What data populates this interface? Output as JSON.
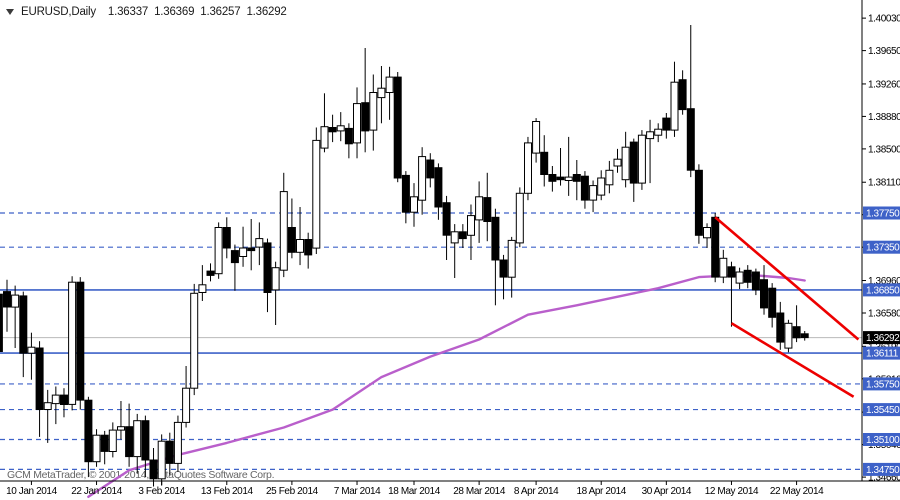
{
  "title": {
    "symbol": "EURUSD,Daily",
    "open": "1.36337",
    "high": "1.36369",
    "low": "1.36257",
    "close": "1.36292"
  },
  "watermark": "GCM MetaTrader, © 2001-2014, MetaQuotes Software Corp.",
  "colors": {
    "blue": "#3E62C8",
    "red": "#ED0000",
    "purple": "#B95FCB",
    "gray_price_line": "#B9B9B9",
    "axis": "#000000",
    "bearish_fill": "#000000",
    "bullish_fill": "#FFFFFF",
    "badge_text": "#FFFFFF",
    "current_badge_bg": "#000000",
    "watermark_color": "#666666"
  },
  "y_axis": {
    "ticks": [
      "1.40030",
      "1.39650",
      "1.39260",
      "1.38880",
      "1.38500",
      "1.38110",
      "1.37730",
      "1.37350",
      "1.36960",
      "1.36580",
      "1.36190",
      "1.35810",
      "1.35420",
      "1.35040",
      "1.34660"
    ]
  },
  "x_axis": {
    "labels": [
      {
        "label": "10 Jan 2014",
        "bar": 4
      },
      {
        "label": "22 Jan 2014",
        "bar": 12
      },
      {
        "label": "3 Feb 2014",
        "bar": 20
      },
      {
        "label": "13 Feb 2014",
        "bar": 28
      },
      {
        "label": "25 Feb 2014",
        "bar": 36
      },
      {
        "label": "7 Mar 2014",
        "bar": 44
      },
      {
        "label": "18 Mar 2014",
        "bar": 51
      },
      {
        "label": "28 Mar 2014",
        "bar": 59
      },
      {
        "label": "8 Apr 2014",
        "bar": 66
      },
      {
        "label": "18 Apr 2014",
        "bar": 74
      },
      {
        "label": "30 Apr 2014",
        "bar": 82
      },
      {
        "label": "12 May 2014",
        "bar": 90
      },
      {
        "label": "22 May 2014",
        "bar": 98
      }
    ]
  },
  "price_badges": [
    {
      "label": "1.37750",
      "price": 1.3775,
      "type": "blue"
    },
    {
      "label": "1.37350",
      "price": 1.3735,
      "type": "blue"
    },
    {
      "label": "1.36850",
      "price": 1.3685,
      "type": "blue"
    },
    {
      "label": "1.36292",
      "price": 1.36292,
      "type": "black"
    },
    {
      "label": "1.36111",
      "price": 1.36111,
      "type": "blue"
    },
    {
      "label": "1.35750",
      "price": 1.3575,
      "type": "blue"
    },
    {
      "label": "1.35450",
      "price": 1.3545,
      "type": "blue"
    },
    {
      "label": "1.35100",
      "price": 1.351,
      "type": "blue"
    },
    {
      "label": "1.34750",
      "price": 1.3475,
      "type": "blue"
    }
  ],
  "chart_data": {
    "type": "candlestick",
    "symbol": "EURUSD",
    "timeframe": "Daily",
    "last_quote": {
      "open": 1.36337,
      "high": 1.36369,
      "low": 1.36257,
      "close": 1.36292
    },
    "y_range_visible": [
      1.346,
      1.4024
    ],
    "columns": [
      "date",
      "open",
      "high",
      "low",
      "close"
    ],
    "candles": [
      [
        "2014-01-06",
        1.368,
        1.3697,
        1.36,
        1.3613
      ],
      [
        "2014-01-07",
        1.3683,
        1.3697,
        1.3636,
        1.3665
      ],
      [
        "2014-01-08",
        1.3665,
        1.369,
        1.3617,
        1.3679
      ],
      [
        "2014-01-09",
        1.3678,
        1.3683,
        1.3583,
        1.3611
      ],
      [
        "2014-01-10",
        1.3611,
        1.3635,
        1.358,
        1.3618
      ],
      [
        "2014-01-13",
        1.3617,
        1.3625,
        1.3513,
        1.3545
      ],
      [
        "2014-01-14",
        1.3545,
        1.3568,
        1.3506,
        1.3553
      ],
      [
        "2014-01-15",
        1.3552,
        1.3572,
        1.3528,
        1.3562
      ],
      [
        "2014-01-16",
        1.3562,
        1.357,
        1.3536,
        1.3551
      ],
      [
        "2014-01-17",
        1.3551,
        1.3701,
        1.3544,
        1.3694
      ],
      [
        "2014-01-20",
        1.3694,
        1.37,
        1.3545,
        1.3556
      ],
      [
        "2014-01-21",
        1.3556,
        1.356,
        1.3466,
        1.3484
      ],
      [
        "2014-01-22",
        1.3484,
        1.3522,
        1.3478,
        1.3515
      ],
      [
        "2014-01-23",
        1.3515,
        1.352,
        1.3481,
        1.3496
      ],
      [
        "2014-01-24",
        1.3496,
        1.353,
        1.3489,
        1.3521
      ],
      [
        "2014-01-27",
        1.3521,
        1.3555,
        1.351,
        1.3525
      ],
      [
        "2014-01-28",
        1.3525,
        1.3552,
        1.3478,
        1.349
      ],
      [
        "2014-01-29",
        1.349,
        1.354,
        1.347,
        1.3532
      ],
      [
        "2014-01-30",
        1.3532,
        1.3538,
        1.3466,
        1.3486
      ],
      [
        "2014-01-31",
        1.3486,
        1.35,
        1.3455,
        1.3464
      ],
      [
        "2014-02-03",
        1.3464,
        1.3516,
        1.3456,
        1.3508
      ],
      [
        "2014-02-04",
        1.3508,
        1.3518,
        1.3468,
        1.3482
      ],
      [
        "2014-02-05",
        1.3482,
        1.3538,
        1.3472,
        1.353
      ],
      [
        "2014-02-06",
        1.353,
        1.3596,
        1.3524,
        1.357
      ],
      [
        "2014-02-07",
        1.357,
        1.3692,
        1.3562,
        1.3681
      ],
      [
        "2014-02-10",
        1.3682,
        1.3714,
        1.3672,
        1.3691
      ],
      [
        "2014-02-11",
        1.3707,
        1.3716,
        1.3695,
        1.3702
      ],
      [
        "2014-02-12",
        1.3704,
        1.3764,
        1.3698,
        1.3758
      ],
      [
        "2014-02-13",
        1.3758,
        1.377,
        1.3722,
        1.3734
      ],
      [
        "2014-02-14",
        1.3731,
        1.3738,
        1.3684,
        1.3717
      ],
      [
        "2014-02-17",
        1.3724,
        1.3759,
        1.3712,
        1.3734
      ],
      [
        "2014-02-18",
        1.3734,
        1.3768,
        1.3708,
        1.3731
      ],
      [
        "2014-02-19",
        1.3735,
        1.3764,
        1.3714,
        1.3745
      ],
      [
        "2014-02-20",
        1.374,
        1.3745,
        1.3659,
        1.3682
      ],
      [
        "2014-02-21",
        1.3685,
        1.3718,
        1.3644,
        1.3711
      ],
      [
        "2014-02-24",
        1.3708,
        1.3822,
        1.37,
        1.38
      ],
      [
        "2014-02-25",
        1.3758,
        1.3792,
        1.3722,
        1.3729
      ],
      [
        "2014-02-26",
        1.3729,
        1.3782,
        1.3714,
        1.3744
      ],
      [
        "2014-02-27",
        1.3744,
        1.3752,
        1.371,
        1.3726
      ],
      [
        "2014-02-28",
        1.3734,
        1.3875,
        1.3727,
        1.386
      ],
      [
        "2014-03-03",
        1.3851,
        1.3915,
        1.3846,
        1.3876
      ],
      [
        "2014-03-04",
        1.3875,
        1.389,
        1.3858,
        1.387
      ],
      [
        "2014-03-05",
        1.3871,
        1.3893,
        1.3859,
        1.3877
      ],
      [
        "2014-03-06",
        1.3874,
        1.388,
        1.3839,
        1.3856
      ],
      [
        "2014-03-07",
        1.3857,
        1.3922,
        1.3839,
        1.3903
      ],
      [
        "2014-03-10",
        1.3904,
        1.3968,
        1.3846,
        1.3871
      ],
      [
        "2014-03-11",
        1.3872,
        1.3937,
        1.3848,
        1.3916
      ],
      [
        "2014-03-12",
        1.391,
        1.3947,
        1.388,
        1.3921
      ],
      [
        "2014-03-13",
        1.3916,
        1.3946,
        1.3884,
        1.3934
      ],
      [
        "2014-03-14",
        1.3934,
        1.394,
        1.3811,
        1.3816
      ],
      [
        "2014-03-17",
        1.3819,
        1.3824,
        1.3763,
        1.3776
      ],
      [
        "2014-03-18",
        1.3776,
        1.381,
        1.3759,
        1.3794
      ],
      [
        "2014-03-19",
        1.379,
        1.3852,
        1.3773,
        1.3841
      ],
      [
        "2014-03-20",
        1.3837,
        1.3845,
        1.3805,
        1.3816
      ],
      [
        "2014-03-21",
        1.3828,
        1.3833,
        1.3767,
        1.3782
      ],
      [
        "2014-03-24",
        1.3787,
        1.3795,
        1.372,
        1.3749
      ],
      [
        "2014-03-25",
        1.374,
        1.3762,
        1.3699,
        1.3753
      ],
      [
        "2014-03-26",
        1.3753,
        1.3762,
        1.3734,
        1.3745
      ],
      [
        "2014-03-27",
        1.3749,
        1.3785,
        1.372,
        1.3772
      ],
      [
        "2014-03-28",
        1.3767,
        1.3812,
        1.374,
        1.3794
      ],
      [
        "2014-03-31",
        1.3793,
        1.3822,
        1.3742,
        1.3765
      ],
      [
        "2014-04-01",
        1.377,
        1.378,
        1.3667,
        1.372
      ],
      [
        "2014-04-02",
        1.372,
        1.3726,
        1.3674,
        1.37
      ],
      [
        "2014-04-03",
        1.37,
        1.3747,
        1.3676,
        1.3743
      ],
      [
        "2014-04-04",
        1.374,
        1.3805,
        1.3735,
        1.3798
      ],
      [
        "2014-04-07",
        1.3798,
        1.3864,
        1.379,
        1.3857
      ],
      [
        "2014-04-08",
        1.3845,
        1.3886,
        1.3834,
        1.3882
      ],
      [
        "2014-04-09",
        1.3846,
        1.3866,
        1.3806,
        1.382
      ],
      [
        "2014-04-10",
        1.382,
        1.383,
        1.38,
        1.3812
      ],
      [
        "2014-04-11",
        1.3817,
        1.3851,
        1.3807,
        1.3814
      ],
      [
        "2014-04-14",
        1.3813,
        1.3864,
        1.3795,
        1.3817
      ],
      [
        "2014-04-15",
        1.382,
        1.3837,
        1.379,
        1.3812
      ],
      [
        "2014-04-16",
        1.3818,
        1.3824,
        1.378,
        1.379
      ],
      [
        "2014-04-17",
        1.379,
        1.3813,
        1.3776,
        1.3807
      ],
      [
        "2014-04-18",
        1.3796,
        1.3825,
        1.379,
        1.3816
      ],
      [
        "2014-04-21",
        1.3808,
        1.3836,
        1.3798,
        1.3825
      ],
      [
        "2014-04-22",
        1.383,
        1.385,
        1.3822,
        1.3838
      ],
      [
        "2014-04-23",
        1.3814,
        1.387,
        1.3805,
        1.3852
      ],
      [
        "2014-04-24",
        1.3858,
        1.3862,
        1.3788,
        1.381
      ],
      [
        "2014-04-25",
        1.381,
        1.3872,
        1.3802,
        1.3866
      ],
      [
        "2014-04-28",
        1.3862,
        1.3884,
        1.381,
        1.387
      ],
      [
        "2014-04-29",
        1.3866,
        1.388,
        1.3858,
        1.3873
      ],
      [
        "2014-04-30",
        1.3886,
        1.3892,
        1.3862,
        1.3872
      ],
      [
        "2014-05-01",
        1.3872,
        1.3952,
        1.3864,
        1.3928
      ],
      [
        "2014-05-02",
        1.3931,
        1.3942,
        1.389,
        1.3896
      ],
      [
        "2014-05-05",
        1.3897,
        1.3995,
        1.3817,
        1.3825
      ],
      [
        "2014-05-06",
        1.3825,
        1.3832,
        1.3739,
        1.3749
      ],
      [
        "2014-05-07",
        1.3746,
        1.3763,
        1.3734,
        1.3758
      ],
      [
        "2014-05-08",
        1.377,
        1.3775,
        1.3694,
        1.37
      ],
      [
        "2014-05-09",
        1.37,
        1.3732,
        1.3693,
        1.3722
      ],
      [
        "2014-05-12",
        1.3712,
        1.3718,
        1.3642,
        1.37
      ],
      [
        "2014-05-13",
        1.3693,
        1.3711,
        1.3686,
        1.3706
      ],
      [
        "2014-05-14",
        1.3708,
        1.3714,
        1.3687,
        1.3694
      ],
      [
        "2014-05-15",
        1.3706,
        1.371,
        1.3679,
        1.3685
      ],
      [
        "2014-05-16",
        1.3697,
        1.3714,
        1.3656,
        1.3664
      ],
      [
        "2014-05-19",
        1.3687,
        1.3693,
        1.3641,
        1.3653
      ],
      [
        "2014-05-20",
        1.3658,
        1.3671,
        1.3615,
        1.3624
      ],
      [
        "2014-05-21",
        1.3617,
        1.365,
        1.3612,
        1.3646
      ],
      [
        "2014-05-22",
        1.3642,
        1.3667,
        1.3624,
        1.3629
      ],
      [
        "2014-05-23",
        1.36337,
        1.36369,
        1.36257,
        1.36292
      ]
    ],
    "overlays": {
      "moving_average": {
        "color": "#B95FCB",
        "points_bar_price": [
          [
            11,
            1.3443
          ],
          [
            16,
            1.3474
          ],
          [
            22,
            1.3492
          ],
          [
            28,
            1.3506
          ],
          [
            35,
            1.3524
          ],
          [
            41,
            1.3545
          ],
          [
            47,
            1.3583
          ],
          [
            53,
            1.3607
          ],
          [
            59,
            1.3627
          ],
          [
            65,
            1.3656
          ],
          [
            71,
            1.3667
          ],
          [
            78,
            1.3681
          ],
          [
            81,
            1.3687
          ],
          [
            86,
            1.37
          ],
          [
            90,
            1.3702
          ],
          [
            93,
            1.3702
          ],
          [
            97,
            1.3699
          ],
          [
            99,
            1.3696
          ]
        ]
      },
      "trendlines": [
        {
          "name": "upper-channel",
          "color": "#ED0000",
          "from_bar_price": [
            88,
            1.377
          ],
          "to_bar_price": [
            105.6,
            1.3627
          ]
        },
        {
          "name": "lower-channel",
          "color": "#ED0000",
          "from_bar_price": [
            90,
            1.3646
          ],
          "to_bar_price": [
            105.0,
            1.356
          ]
        }
      ],
      "horizontal_lines": {
        "solid_blue": [
          1.3685,
          1.36111
        ],
        "dashed_blue": [
          1.3775,
          1.3735,
          1.3575,
          1.3545,
          1.351,
          1.3475
        ],
        "current_price_gray": 1.36292
      }
    }
  }
}
